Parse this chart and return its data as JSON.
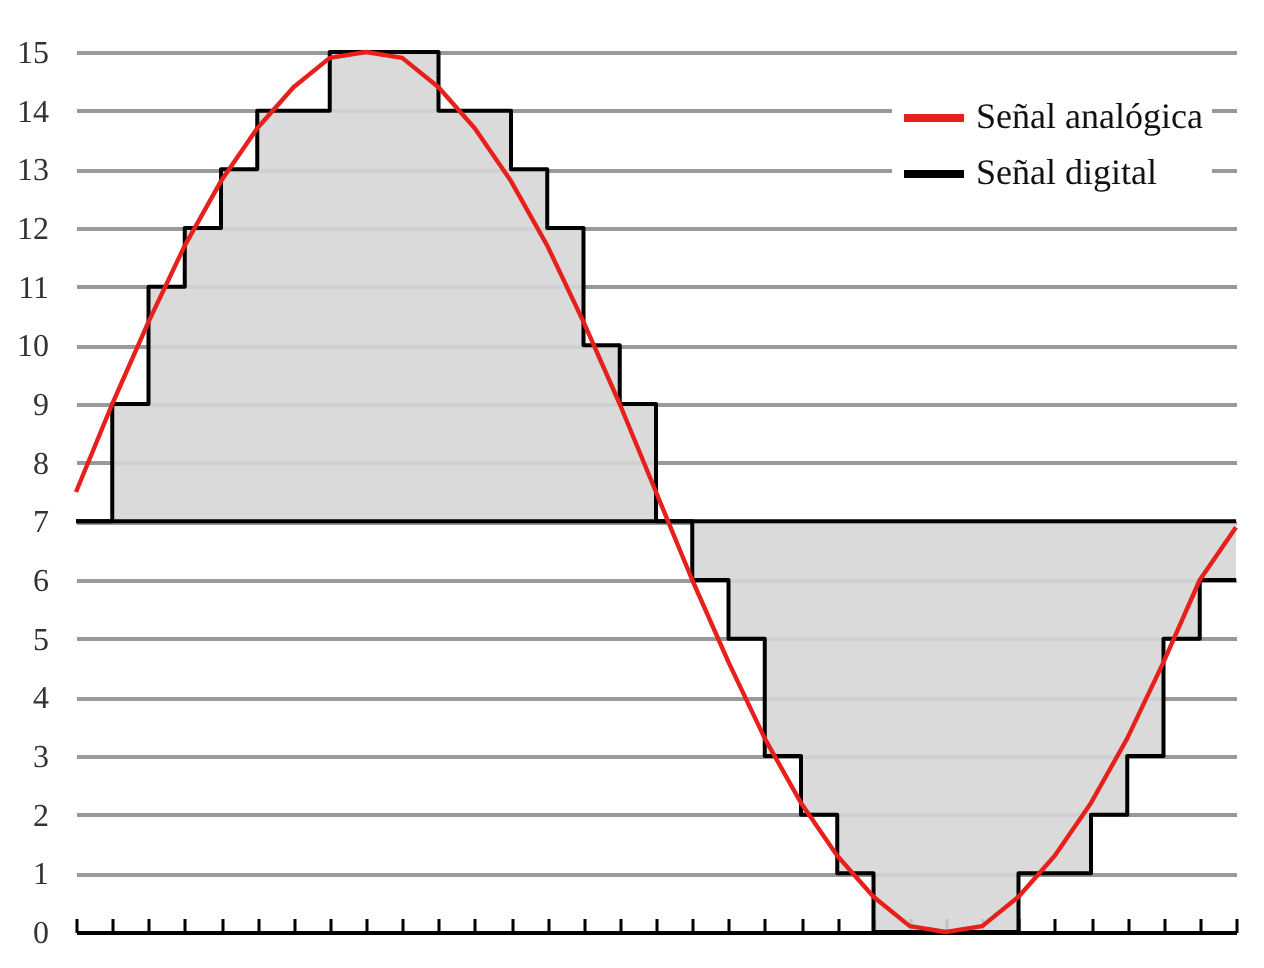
{
  "chart_data": {
    "type": "line",
    "categories": [
      null,
      null,
      null,
      null,
      null,
      null,
      null,
      null,
      null,
      null,
      null,
      null,
      null,
      null,
      null,
      null,
      null,
      null,
      null,
      null,
      null,
      null,
      null,
      null,
      null,
      null,
      null,
      null,
      null,
      null,
      null,
      null,
      null
    ],
    "series": [
      {
        "name": "Señal analógica",
        "type": "line",
        "color": "#e8201c",
        "values": [
          7.5,
          9,
          10.4,
          11.7,
          12.8,
          13.7,
          14.4,
          14.9,
          15,
          14.9,
          14.4,
          13.7,
          12.8,
          11.7,
          10.4,
          9,
          7.5,
          6,
          4.6,
          3.3,
          2.2,
          1.3,
          0.6,
          0.1,
          0,
          0.1,
          0.6,
          1.3,
          2.2,
          3.3,
          4.6,
          6,
          6.9
        ]
      },
      {
        "name": "Señal digital",
        "type": "step",
        "color": "#000000",
        "values": [
          7,
          9,
          11,
          12,
          13,
          14,
          14,
          15,
          15,
          15,
          14,
          14,
          13,
          12,
          10,
          9,
          7,
          6,
          5,
          3,
          2,
          1,
          0,
          0,
          0,
          0,
          1,
          1,
          2,
          3,
          5,
          6,
          6
        ]
      }
    ],
    "ylim": [
      0,
      15
    ],
    "yticks": [
      0,
      1,
      2,
      3,
      4,
      5,
      6,
      7,
      8,
      9,
      10,
      11,
      12,
      13,
      14,
      15
    ],
    "ref_lines": [
      {
        "axis": "y",
        "value": 7,
        "color": "#000000"
      }
    ],
    "grid": "y",
    "legend": "top right",
    "tick_labels": "y",
    "marker": "none"
  }
}
